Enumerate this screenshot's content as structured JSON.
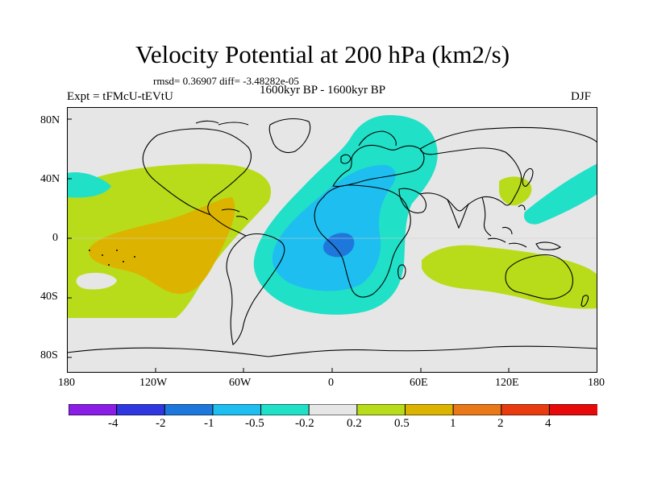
{
  "title": "Velocity Potential at 200 hPa (km2/s)",
  "stats": "rmsd= 0.36907 diff= -3.48282e-05",
  "left_label": "Expt = tFMcU-tEVtU",
  "center_label": "1600kyr BP - 1600kyr BP",
  "right_label": "DJF",
  "lat_labels": [
    "80N",
    "40N",
    "0",
    "40S",
    "80S"
  ],
  "lon_labels": [
    "180",
    "120W",
    "60W",
    "0",
    "60E",
    "120E",
    "180"
  ],
  "colorbar": {
    "labels": [
      "-4",
      "-2",
      "-1",
      "-0.5",
      "-0.2",
      "0.2",
      "0.5",
      "1",
      "2",
      "4"
    ],
    "colors": [
      "#8a1ee6",
      "#2f37e0",
      "#1e78dc",
      "#1ebef0",
      "#20e0c8",
      "#e6e6e6",
      "#b8dc1a",
      "#dcb400",
      "#e87818",
      "#e83c10",
      "#e60a0a"
    ]
  },
  "field_colors": {
    "ocean_bg": "#e6e6e6",
    "neg_0_2": "#20e0c8",
    "neg_0_5": "#1ebef0",
    "neg_1": "#1e78dc",
    "pos_0_2": "#b8dc1a",
    "pos_0_5": "#dcb400"
  }
}
